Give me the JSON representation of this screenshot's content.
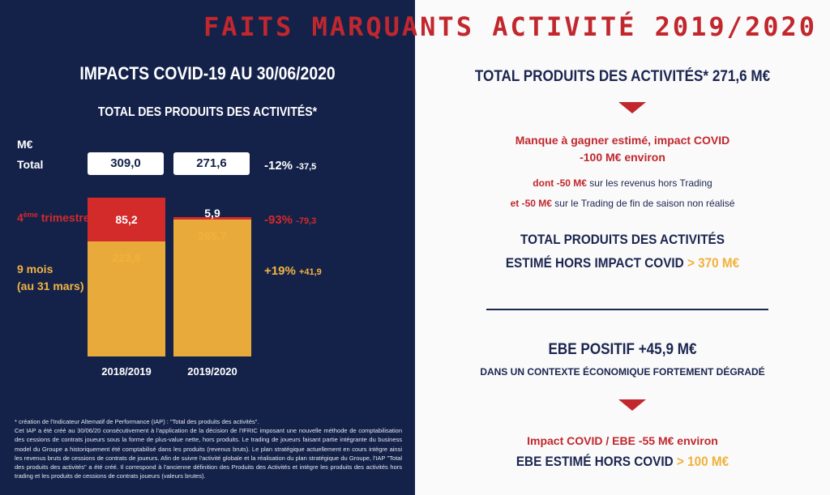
{
  "header": {
    "title": "FAITS MARQUANTS ACTIVITÉ 2019/2020"
  },
  "left": {
    "title": "IMPACTS COVID-19 AU 30/06/2020",
    "subtitle": "TOTAL DES PRODUITS DES ACTIVITÉS*",
    "unit": "M€",
    "total_label": "Total",
    "totals": [
      "309,0",
      "271,6"
    ],
    "total_delta": "-12%",
    "total_delta_abs": "-37,5",
    "q4_label_prefix": "4",
    "q4_label_sup": "ème",
    "q4_label_suffix": " trimestre",
    "q4_delta": "-93%",
    "q4_delta_abs": "-79,3",
    "m9_label_1": "9 mois",
    "m9_label_2": "(au 31 mars)",
    "m9_delta": "+19%",
    "m9_delta_abs": "+41,9",
    "footnote": "* création de l'Indicateur Altematif de Performance (IAP) : \"Total des produits des activités\".\nCet IAP a été créé au 30/06/20 consécutivement à l'application de la décision de l'IFRIC imposant une nouvelle méthode de comptabilisation des cessions de contrats joueurs sous la forme de plus-value nette, hors produits. Le trading de joueurs faisant partie intégrante du business model du Groupe a historiquement été comptabilisé dans les produits (revenus bruts). Le plan stratégique actuellement en cours intègre ainsi les revenus bruts de cessions de contrats de joueurs. Afin de suivre l'activité globale et la réalisation du plan stratégique du Groupe, l'IAP \"Total des produits des activités\" a été créé. Il correspond à l'ancienne définition des Produits des Activités et intègre les produits des activités hors trading et les produits de cessions de contrats joueurs (valeurs brutes)."
  },
  "chart_data": {
    "type": "bar",
    "stacked": true,
    "unit": "M€",
    "categories": [
      "2018/2019",
      "2019/2020"
    ],
    "series": [
      {
        "name": "9 mois (au 31 mars)",
        "values": [
          223.8,
          265.7
        ],
        "labels": [
          "223,8",
          "265,7"
        ],
        "color": "#e9aa3c"
      },
      {
        "name": "4ème trimestre",
        "values": [
          85.2,
          5.9
        ],
        "labels": [
          "85,2",
          "5,9"
        ],
        "color": "#d32a2a"
      }
    ],
    "totals": [
      309.0,
      271.6
    ]
  },
  "right": {
    "head1": "TOTAL PRODUITS DES ACTIVITÉS* 271,6 M€",
    "covid1": "Manque à gagner estimé, impact COVID",
    "covid2": "-100 M€ environ",
    "l1_red": "dont -50 M€",
    "l1_rest": " sur les revenus hors Trading",
    "l2_red": "et -50 M€",
    "l2_rest": " sur le Trading de fin de saison non réalisé",
    "est1": "TOTAL PRODUITS DES ACTIVITÉS",
    "est2": "ESTIMÉ HORS IMPACT COVID ",
    "est2_gold": "> 370 M€",
    "ebe1": "EBE POSITIF +45,9 M€",
    "ebe2": "DANS UN CONTEXTE ÉCONOMIQUE FORTEMENT DÉGRADÉ",
    "ebe_covid": "Impact COVID / EBE -55 M€ environ",
    "ebe_est": "EBE ESTIMÉ HORS COVID ",
    "ebe_est_gold": "> 100 M€"
  },
  "colors": {
    "navy": "#14224a",
    "red": "#c1272d",
    "gold": "#e9aa3c"
  }
}
